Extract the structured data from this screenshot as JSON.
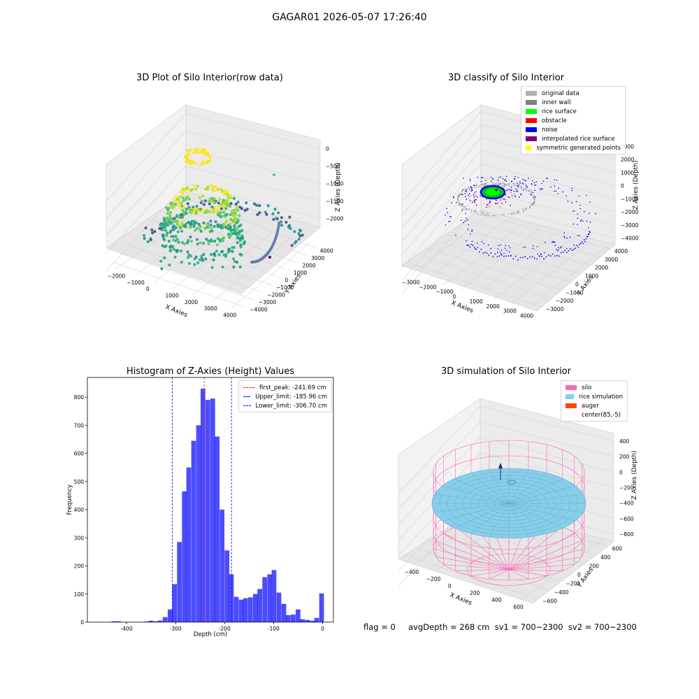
{
  "figure_title": "GAGAR01 2026-05-07 17:26:40",
  "status_line": "flag = 0     avgDepth = 268 cm  sv1 = 700~2300  sv2 = 700~2300",
  "chart_data": [
    {
      "type": "scatter",
      "projection": "3d",
      "title": "3D Plot of Silo Interior(row data)",
      "xlabel": "X Axies",
      "ylabel": "Y Axies",
      "zlabel": "Z Axies (Depth)",
      "x_ticks": [
        "−2000",
        "−1000",
        "0",
        "1000",
        "2000",
        "3000",
        "4000"
      ],
      "y_ticks": [
        "−4000",
        "−3000",
        "−2000",
        "−1000",
        "0",
        "1000",
        "2000",
        "3000",
        "4000"
      ],
      "z_ticks": [
        "−2000",
        "−1500",
        "−1000",
        "−500",
        "0"
      ],
      "colormap": "viridis",
      "grid": true
    },
    {
      "type": "scatter",
      "projection": "3d",
      "title": "3D classify of Silo Interior",
      "xlabel": "X Axies",
      "ylabel": "Y Axies",
      "zlabel": "Z Axies (Depth)",
      "x_ticks": [
        "−3000",
        "−2000",
        "−1000",
        "0",
        "1000",
        "2000",
        "3000",
        "4000"
      ],
      "y_ticks": [
        "−3000",
        "−2000",
        "−1000",
        "0",
        "1000",
        "2000",
        "3000",
        "4000"
      ],
      "z_ticks": [
        "−4000",
        "−3000",
        "−2000",
        "−1000",
        "0",
        "1000",
        "2000",
        "3000"
      ],
      "legend_position": "top-right",
      "grid": true,
      "legend": [
        {
          "label": "original data",
          "color": "#b0b0b0"
        },
        {
          "label": "inner wall",
          "color": "#808080"
        },
        {
          "label": "rice surface",
          "color": "#00ff00"
        },
        {
          "label": "obstacle",
          "color": "#ff0000"
        },
        {
          "label": "noise",
          "color": "#0000ff"
        },
        {
          "label": "interpolated rice surface",
          "color": "#800080"
        },
        {
          "label": "symmetric generated points",
          "color": "#ffff00"
        }
      ]
    },
    {
      "type": "bar",
      "title": "Histogram of Z-Axies (Height) Values",
      "xlabel": "Depth (cm)",
      "ylabel": "Frequency",
      "bar_color": "#0000ff",
      "bin_width": 9.6,
      "xlim": [
        -480,
        22
      ],
      "ylim": [
        0,
        870
      ],
      "x_ticks": [
        -400,
        -300,
        -200,
        -100,
        0
      ],
      "y_ticks": [
        0,
        100,
        200,
        300,
        400,
        500,
        600,
        700,
        800
      ],
      "bins_left_edges": [
        -431,
        -421,
        -365,
        -355,
        -345,
        -336,
        -326,
        -316,
        -307,
        -297,
        -287,
        -278,
        -268,
        -258,
        -249,
        -239,
        -229,
        -220,
        -210,
        -200,
        -191,
        -181,
        -171,
        -162,
        -152,
        -142,
        -133,
        -123,
        -113,
        -104,
        -94,
        -84,
        -75,
        -65,
        -55,
        -46,
        -36,
        -26,
        -17,
        -7
      ],
      "values": [
        3,
        3,
        2,
        5,
        3,
        6,
        18,
        45,
        135,
        285,
        465,
        550,
        645,
        700,
        830,
        790,
        795,
        660,
        400,
        255,
        170,
        90,
        80,
        85,
        88,
        100,
        118,
        160,
        170,
        185,
        105,
        65,
        25,
        27,
        45,
        10,
        8,
        5,
        15,
        102
      ],
      "vlines": [
        {
          "label": "first_peak: -241.69 cm",
          "x": -241.69,
          "color": "#ff0000"
        },
        {
          "label": "Upper_limit: -185.96 cm",
          "x": -185.96,
          "color": "#0000ff"
        },
        {
          "label": "Lower_limit: -306.70 cm",
          "x": -306.7,
          "color": "#0000ff"
        }
      ],
      "legend_position": "top-right"
    },
    {
      "type": "surface",
      "projection": "3d",
      "title": "3D simulation of Silo Interior",
      "xlabel": "X Axies",
      "ylabel": "Y Axies",
      "zlabel": "Z Axies (Depth)",
      "x_ticks": [
        "−400",
        "−200",
        "0",
        "200",
        "400",
        "600"
      ],
      "y_ticks": [
        "−600",
        "−400",
        "−200",
        "0",
        "200",
        "400",
        "600"
      ],
      "z_ticks": [
        "−800",
        "−600",
        "−400",
        "−200",
        "0",
        "200",
        "400"
      ],
      "legend_position": "top-right",
      "grid": true,
      "legend": [
        {
          "label": "silo",
          "color": "#ff69b4"
        },
        {
          "label": "rice simulation",
          "color": "#87ceeb"
        },
        {
          "label": "auger",
          "color": "#ff4500"
        },
        {
          "label": "center(85,-5)",
          "color": "#ffffff"
        }
      ]
    }
  ]
}
